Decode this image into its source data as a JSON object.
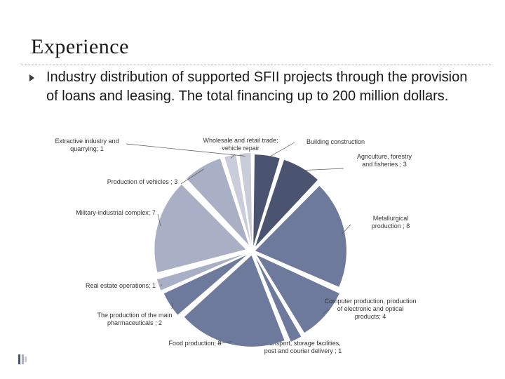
{
  "slide": {
    "title": "Experience",
    "bullet": "Industry distribution of supported SFII projects through the provision of loans and leasing. The total financing up to 200 million dollars."
  },
  "colors": {
    "dark": "#4a5470",
    "mid": "#6e7a9c",
    "light": "#a9b0c6",
    "pale": "#c9cdda",
    "leader": "#555555"
  },
  "icons": {
    "bullet": "triangle-right-icon",
    "corner": "slide-nav-icon"
  },
  "chart_data": {
    "type": "pie",
    "title": "",
    "slices": [
      {
        "label": "Building construction",
        "value": 2,
        "text": "Building construction"
      },
      {
        "label": "Agriculture, forestry and fisheries",
        "value": 3,
        "text": "Agriculture, forestry and fisheries ; 3"
      },
      {
        "label": "Metallurgical production",
        "value": 8,
        "text": "Metallurgical production ; 8"
      },
      {
        "label": "Computer production, production of electronic and optical products",
        "value": 4,
        "text": "Computer production, production of electronic and optical products; 4"
      },
      {
        "label": "transport, storage facilities, post and courier delivery",
        "value": 1,
        "text": "transport, storage facilities, post and courier delivery ; 1"
      },
      {
        "label": "Food production",
        "value": 8,
        "text": "Food production; 8"
      },
      {
        "label": "The production of the main pharmaceuticals",
        "value": 2,
        "text": "The production of the main pharmaceuticals ; 2"
      },
      {
        "label": "Real estate operations",
        "value": 1,
        "text": "Real estate operations; 1"
      },
      {
        "label": "Military-industrial complex",
        "value": 7,
        "text": "Military-industrial complex; 7"
      },
      {
        "label": "Production of vehicles",
        "value": 3,
        "text": "Production of vehicles ; 3"
      },
      {
        "label": "Wholesale and retail trade; vehicle repair",
        "value": 1,
        "text": "Wholesale and retail trade; vehicle repair"
      },
      {
        "label": "Extractive industry and quarrying",
        "value": 1,
        "text": "Extractive industry and quarrying; 1"
      }
    ]
  }
}
